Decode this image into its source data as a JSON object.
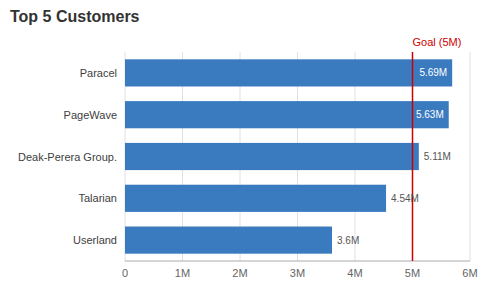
{
  "chart_data": {
    "type": "bar",
    "orientation": "horizontal",
    "title": "Top 5 Customers",
    "categories": [
      "Userland",
      "Talarian",
      "Deak-Perera Group.",
      "PageWave",
      "Paracel"
    ],
    "values": [
      3.6,
      4.54,
      5.11,
      5.63,
      5.69
    ],
    "value_labels": [
      "3.6M",
      "4.54M",
      "5.11M",
      "5.63M",
      "5.69M"
    ],
    "data_labels": true,
    "color": "#3a7abf",
    "xlim": [
      0,
      6.0
    ],
    "xticks": [
      0,
      {
        "value": 1,
        "label": "1M"
      },
      {
        "value": 2,
        "label": "2M"
      },
      {
        "value": 3,
        "label": "3M"
      },
      {
        "value": 4,
        "label": "4M"
      },
      {
        "value": 5,
        "label": "5M"
      },
      {
        "value": 6,
        "label": "6M"
      }
    ],
    "grid": true,
    "annotations": [
      {
        "text": "Goal (5M)",
        "x": 5.0,
        "color": "#cc0000"
      }
    ]
  }
}
